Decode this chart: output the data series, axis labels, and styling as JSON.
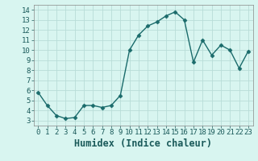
{
  "x": [
    0,
    1,
    2,
    3,
    4,
    5,
    6,
    7,
    8,
    9,
    10,
    11,
    12,
    13,
    14,
    15,
    16,
    17,
    18,
    19,
    20,
    21,
    22,
    23
  ],
  "y": [
    5.8,
    4.5,
    3.5,
    3.2,
    3.3,
    4.5,
    4.5,
    4.3,
    4.5,
    5.5,
    10.0,
    11.5,
    12.4,
    12.8,
    13.4,
    13.8,
    13.0,
    8.8,
    11.0,
    9.5,
    10.5,
    10.0,
    8.2,
    9.9
  ],
  "line_color": "#1a6b6b",
  "marker": "D",
  "marker_size": 2.5,
  "bg_color": "#d8f5f0",
  "grid_color": "#b8ddd8",
  "xlabel": "Humidex (Indice chaleur)",
  "xlim": [
    -0.5,
    23.5
  ],
  "ylim": [
    2.5,
    14.5
  ],
  "yticks": [
    3,
    4,
    5,
    6,
    7,
    8,
    9,
    10,
    11,
    12,
    13,
    14
  ],
  "xticks": [
    0,
    1,
    2,
    3,
    4,
    5,
    6,
    7,
    8,
    9,
    10,
    11,
    12,
    13,
    14,
    15,
    16,
    17,
    18,
    19,
    20,
    21,
    22,
    23
  ],
  "tick_labelsize": 6.5,
  "xlabel_fontsize": 8.5,
  "linewidth": 1.0
}
